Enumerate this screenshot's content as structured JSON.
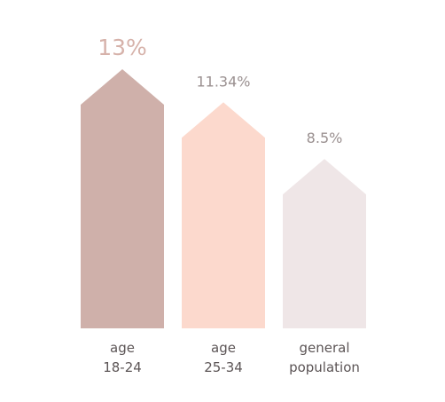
{
  "chart_data": {
    "type": "bar",
    "categories": [
      [
        "age",
        "18-24"
      ],
      [
        "age",
        "25-34"
      ],
      [
        "general",
        "population"
      ]
    ],
    "values": [
      13,
      11.34,
      8.5
    ],
    "value_labels": [
      "13%",
      "11.34%",
      "8.5%"
    ],
    "bar_colors": [
      "#cfb0aa",
      "#fcd9cd",
      "#efe6e7"
    ],
    "highlight_index": 0,
    "title": "",
    "xlabel": "",
    "ylabel": "",
    "ylim": [
      0,
      14
    ],
    "grid": false,
    "legend": "none"
  }
}
